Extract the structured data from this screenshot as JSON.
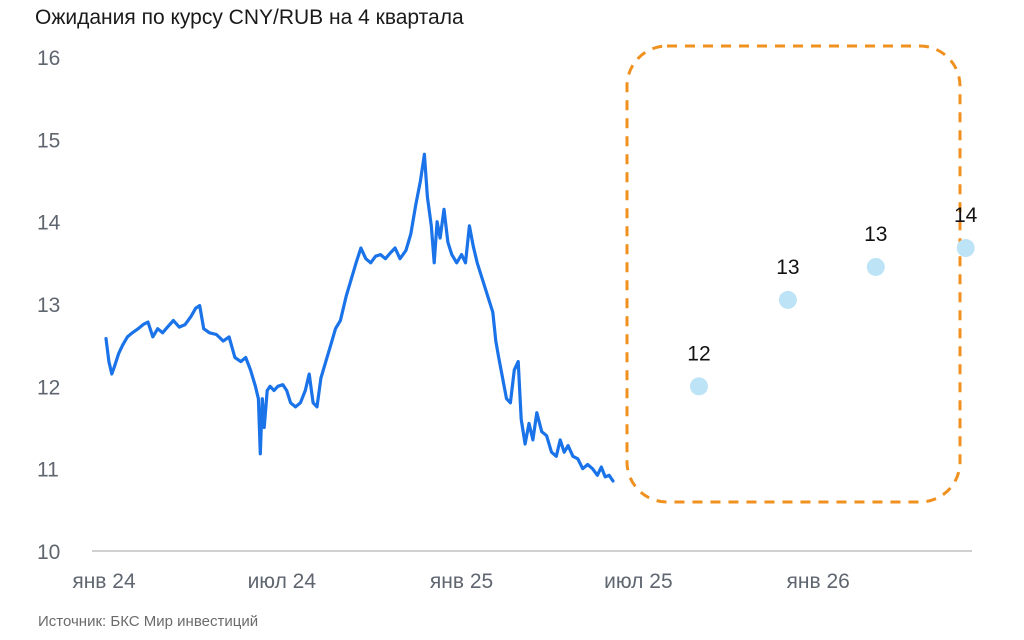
{
  "title": "Ожидания по курсу CNY/RUB на 4 квартала",
  "source": "Источник: БКС Мир инвестиций",
  "chart_data": {
    "type": "line",
    "ylim": [
      10,
      16
    ],
    "yticks": [
      "10",
      "11",
      "12",
      "13",
      "14",
      "15",
      "16"
    ],
    "xticks": [
      {
        "label": "янв 24",
        "date": "2024-01-01"
      },
      {
        "label": "июл 24",
        "date": "2024-07-01"
      },
      {
        "label": "янв 25",
        "date": "2025-01-01"
      },
      {
        "label": "июл 25",
        "date": "2025-07-01"
      },
      {
        "label": "янв 26",
        "date": "2026-01-01"
      }
    ],
    "xrange": [
      "2024-01-01",
      "2026-07-01"
    ],
    "grid": false,
    "historical": {
      "color": "#1a73e8",
      "points": [
        [
          "2024-01-03",
          12.58
        ],
        [
          "2024-01-06",
          12.3
        ],
        [
          "2024-01-09",
          12.15
        ],
        [
          "2024-01-12",
          12.25
        ],
        [
          "2024-01-16",
          12.4
        ],
        [
          "2024-01-20",
          12.5
        ],
        [
          "2024-01-25",
          12.6
        ],
        [
          "2024-01-30",
          12.65
        ],
        [
          "2024-02-05",
          12.7
        ],
        [
          "2024-02-10",
          12.75
        ],
        [
          "2024-02-15",
          12.78
        ],
        [
          "2024-02-20",
          12.6
        ],
        [
          "2024-02-25",
          12.7
        ],
        [
          "2024-03-01",
          12.65
        ],
        [
          "2024-03-06",
          12.72
        ],
        [
          "2024-03-12",
          12.8
        ],
        [
          "2024-03-18",
          12.72
        ],
        [
          "2024-03-24",
          12.75
        ],
        [
          "2024-03-30",
          12.85
        ],
        [
          "2024-04-04",
          12.95
        ],
        [
          "2024-04-08",
          12.98
        ],
        [
          "2024-04-12",
          12.7
        ],
        [
          "2024-04-18",
          12.65
        ],
        [
          "2024-04-25",
          12.63
        ],
        [
          "2024-05-02",
          12.55
        ],
        [
          "2024-05-08",
          12.6
        ],
        [
          "2024-05-14",
          12.35
        ],
        [
          "2024-05-20",
          12.3
        ],
        [
          "2024-05-25",
          12.35
        ],
        [
          "2024-05-30",
          12.2
        ],
        [
          "2024-06-04",
          12.0
        ],
        [
          "2024-06-07",
          11.85
        ],
        [
          "2024-06-09",
          11.18
        ],
        [
          "2024-06-11",
          11.85
        ],
        [
          "2024-06-13",
          11.5
        ],
        [
          "2024-06-16",
          11.95
        ],
        [
          "2024-06-19",
          12.0
        ],
        [
          "2024-06-23",
          11.95
        ],
        [
          "2024-06-27",
          12.0
        ],
        [
          "2024-07-02",
          12.02
        ],
        [
          "2024-07-06",
          11.95
        ],
        [
          "2024-07-10",
          11.8
        ],
        [
          "2024-07-15",
          11.75
        ],
        [
          "2024-07-20",
          11.8
        ],
        [
          "2024-07-25",
          11.95
        ],
        [
          "2024-07-29",
          12.15
        ],
        [
          "2024-08-02",
          11.8
        ],
        [
          "2024-08-06",
          11.75
        ],
        [
          "2024-08-10",
          12.1
        ],
        [
          "2024-08-15",
          12.3
        ],
        [
          "2024-08-20",
          12.5
        ],
        [
          "2024-08-25",
          12.7
        ],
        [
          "2024-08-30",
          12.8
        ],
        [
          "2024-09-05",
          13.1
        ],
        [
          "2024-09-10",
          13.3
        ],
        [
          "2024-09-15",
          13.5
        ],
        [
          "2024-09-20",
          13.68
        ],
        [
          "2024-09-25",
          13.55
        ],
        [
          "2024-09-30",
          13.5
        ],
        [
          "2024-10-05",
          13.58
        ],
        [
          "2024-10-10",
          13.6
        ],
        [
          "2024-10-15",
          13.55
        ],
        [
          "2024-10-20",
          13.62
        ],
        [
          "2024-10-25",
          13.68
        ],
        [
          "2024-10-30",
          13.55
        ],
        [
          "2024-11-05",
          13.65
        ],
        [
          "2024-11-10",
          13.85
        ],
        [
          "2024-11-15",
          14.2
        ],
        [
          "2024-11-20",
          14.5
        ],
        [
          "2024-11-24",
          14.82
        ],
        [
          "2024-11-27",
          14.3
        ],
        [
          "2024-12-01",
          13.95
        ],
        [
          "2024-12-04",
          13.5
        ],
        [
          "2024-12-07",
          14.0
        ],
        [
          "2024-12-10",
          13.8
        ],
        [
          "2024-12-14",
          14.15
        ],
        [
          "2024-12-18",
          13.75
        ],
        [
          "2024-12-22",
          13.6
        ],
        [
          "2024-12-27",
          13.5
        ],
        [
          "2025-01-01",
          13.6
        ],
        [
          "2025-01-05",
          13.5
        ],
        [
          "2025-01-09",
          13.95
        ],
        [
          "2025-01-13",
          13.7
        ],
        [
          "2025-01-17",
          13.5
        ],
        [
          "2025-01-21",
          13.35
        ],
        [
          "2025-01-25",
          13.2
        ],
        [
          "2025-01-29",
          13.05
        ],
        [
          "2025-02-02",
          12.9
        ],
        [
          "2025-02-05",
          12.55
        ],
        [
          "2025-02-08",
          12.35
        ],
        [
          "2025-02-12",
          12.1
        ],
        [
          "2025-02-16",
          11.85
        ],
        [
          "2025-02-20",
          11.8
        ],
        [
          "2025-02-24",
          12.2
        ],
        [
          "2025-02-28",
          12.3
        ],
        [
          "2025-03-03",
          11.6
        ],
        [
          "2025-03-07",
          11.3
        ],
        [
          "2025-03-11",
          11.55
        ],
        [
          "2025-03-15",
          11.35
        ],
        [
          "2025-03-19",
          11.68
        ],
        [
          "2025-03-24",
          11.45
        ],
        [
          "2025-03-29",
          11.4
        ],
        [
          "2025-04-03",
          11.2
        ],
        [
          "2025-04-08",
          11.15
        ],
        [
          "2025-04-12",
          11.35
        ],
        [
          "2025-04-16",
          11.2
        ],
        [
          "2025-04-20",
          11.28
        ],
        [
          "2025-04-25",
          11.15
        ],
        [
          "2025-04-30",
          11.12
        ],
        [
          "2025-05-05",
          11.0
        ],
        [
          "2025-05-10",
          11.05
        ],
        [
          "2025-05-15",
          11.0
        ],
        [
          "2025-05-20",
          10.92
        ],
        [
          "2025-05-24",
          11.02
        ],
        [
          "2025-05-28",
          10.9
        ],
        [
          "2025-06-01",
          10.92
        ],
        [
          "2025-06-05",
          10.85
        ]
      ]
    },
    "forecast": {
      "color": "#bde3f6",
      "box_color": "#f0901e",
      "points": [
        {
          "date": "2025-09-01",
          "value": 12.0,
          "label": "12"
        },
        {
          "date": "2025-12-01",
          "value": 13.05,
          "label": "13"
        },
        {
          "date": "2026-03-01",
          "value": 13.45,
          "label": "13"
        },
        {
          "date": "2026-06-01",
          "value": 13.68,
          "label": "14"
        }
      ]
    }
  }
}
